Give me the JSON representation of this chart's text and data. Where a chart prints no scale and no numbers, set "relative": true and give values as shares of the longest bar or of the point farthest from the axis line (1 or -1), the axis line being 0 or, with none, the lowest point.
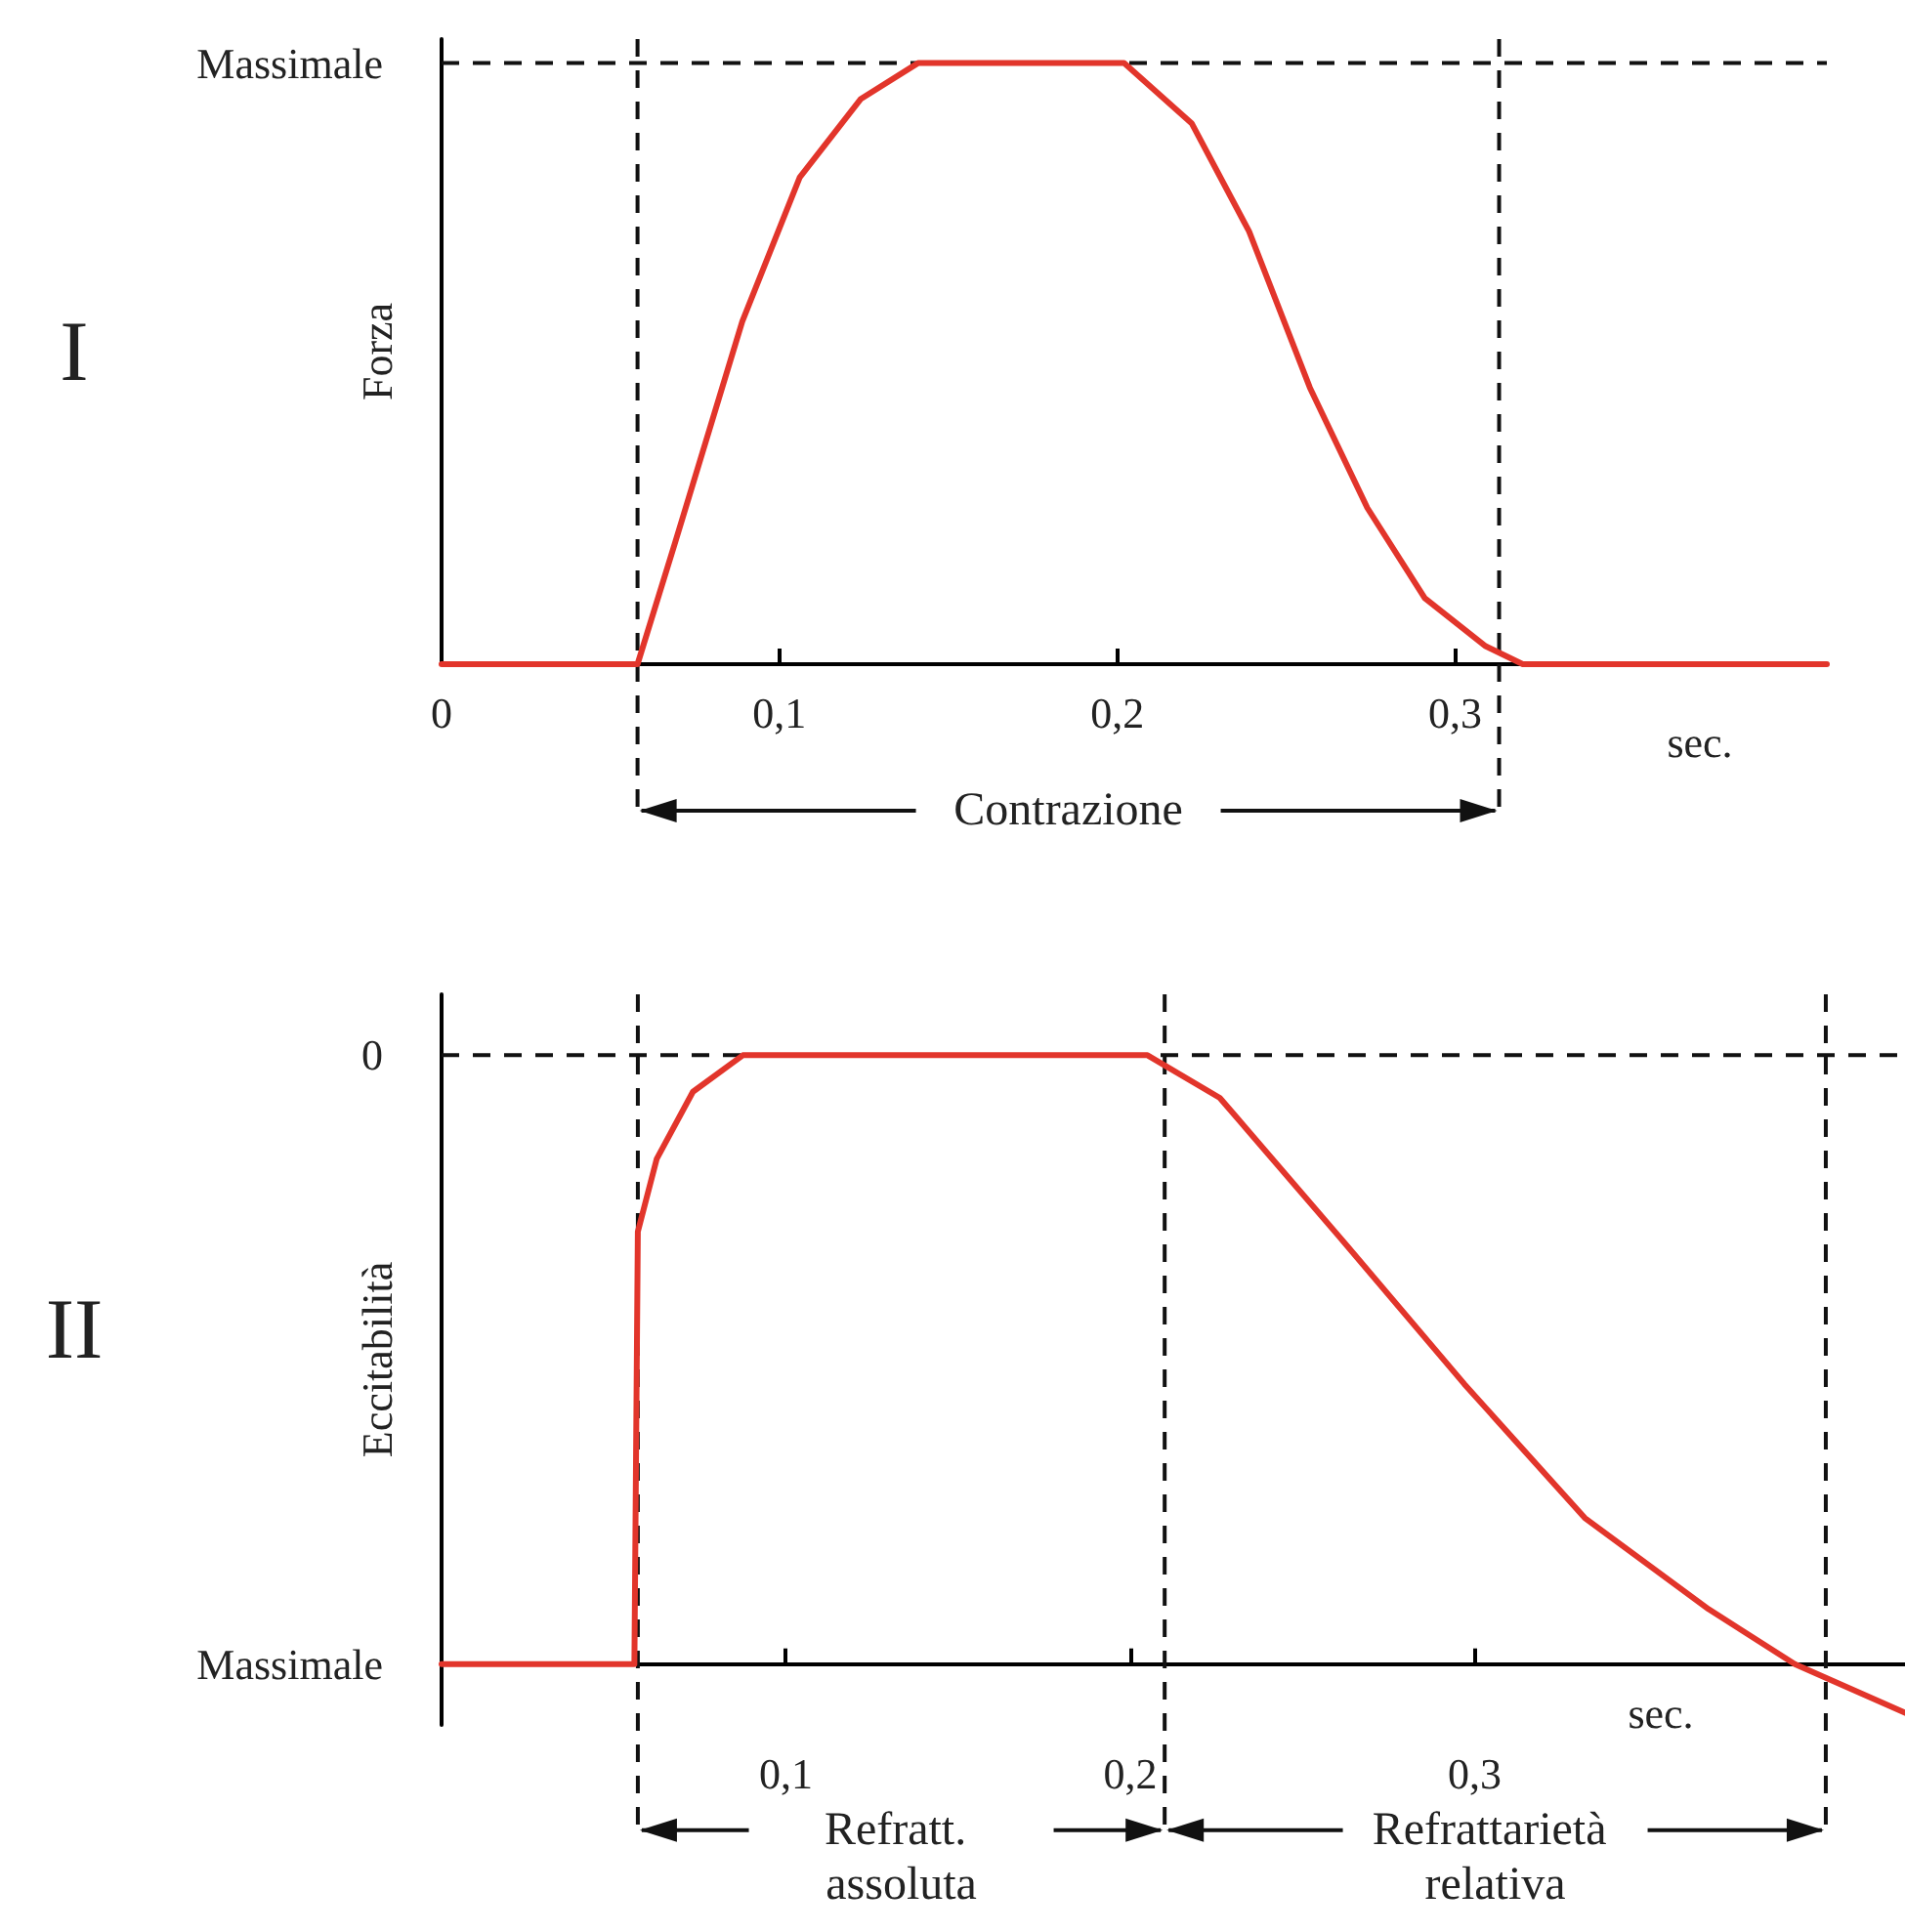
{
  "chart_data": [
    {
      "type": "line",
      "annotations": [
        "I",
        "Contrazione"
      ],
      "xlabel": "sec.",
      "ylabel": "Forza",
      "relative": true,
      "marker": "none",
      "x": [
        0,
        0.058,
        0.069,
        0.089,
        0.106,
        0.124,
        0.141,
        0.202,
        0.222,
        0.239,
        0.257,
        0.274,
        0.291,
        0.309,
        0.32,
        0.41
      ],
      "series": [
        {
          "color": "#e2352b",
          "values": [
            0,
            0,
            0.2,
            0.57,
            0.81,
            0.94,
            1,
            1,
            0.9,
            0.72,
            0.46,
            0.26,
            0.11,
            0.03,
            0,
            0
          ]
        }
      ],
      "xlim": [
        0,
        0.41
      ],
      "xticks": [
        0,
        {
          "value": 0.1,
          "label": "0,1"
        },
        {
          "value": 0.2,
          "label": "0,2"
        },
        {
          "value": 0.3,
          "label": "0,3"
        }
      ],
      "ref_lines": [
        {
          "axis": "y",
          "value": 1,
          "label": "Massimale",
          "line_style": "dashed"
        },
        {
          "axis": "x",
          "value": 0.058,
          "line_style": "dashed"
        },
        {
          "axis": "x",
          "value": 0.313,
          "line_style": "dashed"
        }
      ]
    },
    {
      "type": "line",
      "annotations": [
        "II",
        "Refratt. assoluta",
        "Refrattarietà relativa",
        "0",
        "Massimale"
      ],
      "xlabel": "sec.",
      "ylabel": "Eccitabilità",
      "relative": true,
      "marker": "none",
      "x": [
        0,
        0.056,
        0.057,
        0.0625,
        0.073,
        0.0875,
        0.205,
        0.226,
        0.261,
        0.297,
        0.332,
        0.368,
        0.393,
        0.425
      ],
      "series": [
        {
          "color": "#e2352b",
          "values": [
            0,
            0,
            0.71,
            0.83,
            0.94,
            1,
            1,
            0.93,
            0.7,
            0.46,
            0.24,
            0.09,
            0,
            -0.08
          ]
        }
      ],
      "xlim": [
        0,
        0.425
      ],
      "xticks": [
        {
          "value": 0.1,
          "label": "0,1"
        },
        {
          "value": 0.2,
          "label": "0,2"
        },
        {
          "value": 0.3,
          "label": "0,3"
        }
      ],
      "ref_lines": [
        {
          "axis": "y",
          "value": 1,
          "line_style": "dashed"
        },
        {
          "axis": "x",
          "value": 0.057,
          "line_style": "dashed"
        },
        {
          "axis": "x",
          "value": 0.21,
          "line_style": "dashed"
        },
        {
          "axis": "x",
          "value": 0.402,
          "line_style": "dashed"
        }
      ]
    }
  ]
}
